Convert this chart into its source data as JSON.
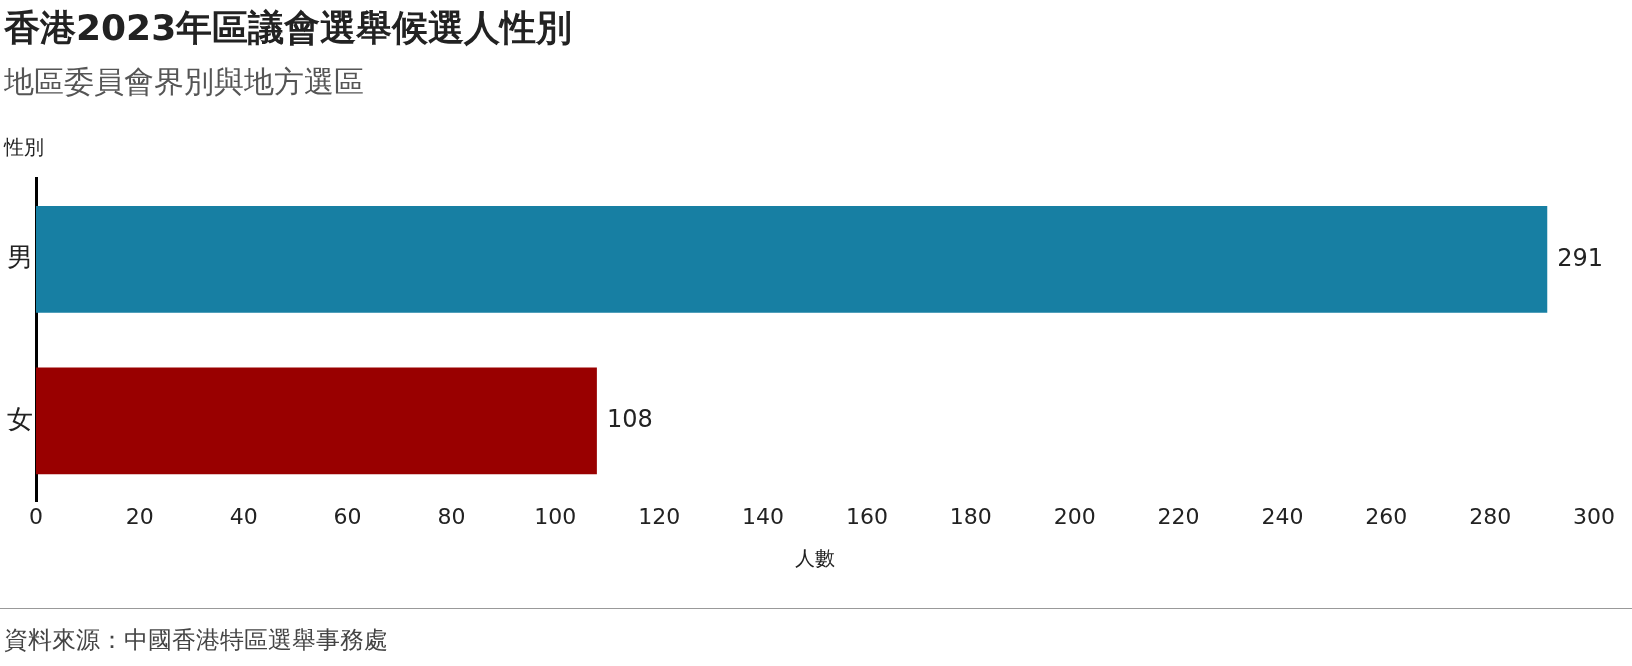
{
  "chart_data": {
    "type": "bar",
    "orientation": "horizontal",
    "title": "香港2023年區議會選舉候選人性別",
    "subtitle": "地區委員會界別與地方選區",
    "ylabel": "性別",
    "xlabel": "人數",
    "categories": [
      "男",
      "女"
    ],
    "values": [
      291,
      108
    ],
    "colors": [
      "#177fa3",
      "#990000"
    ],
    "xlim": [
      0,
      300
    ],
    "xticks": [
      0,
      20,
      40,
      60,
      80,
      100,
      120,
      140,
      160,
      180,
      200,
      220,
      240,
      260,
      280,
      300
    ],
    "data_labels": true,
    "grid": false,
    "legend": false,
    "annotations": [
      "資料來源：中國香港特區選舉事務處"
    ]
  }
}
